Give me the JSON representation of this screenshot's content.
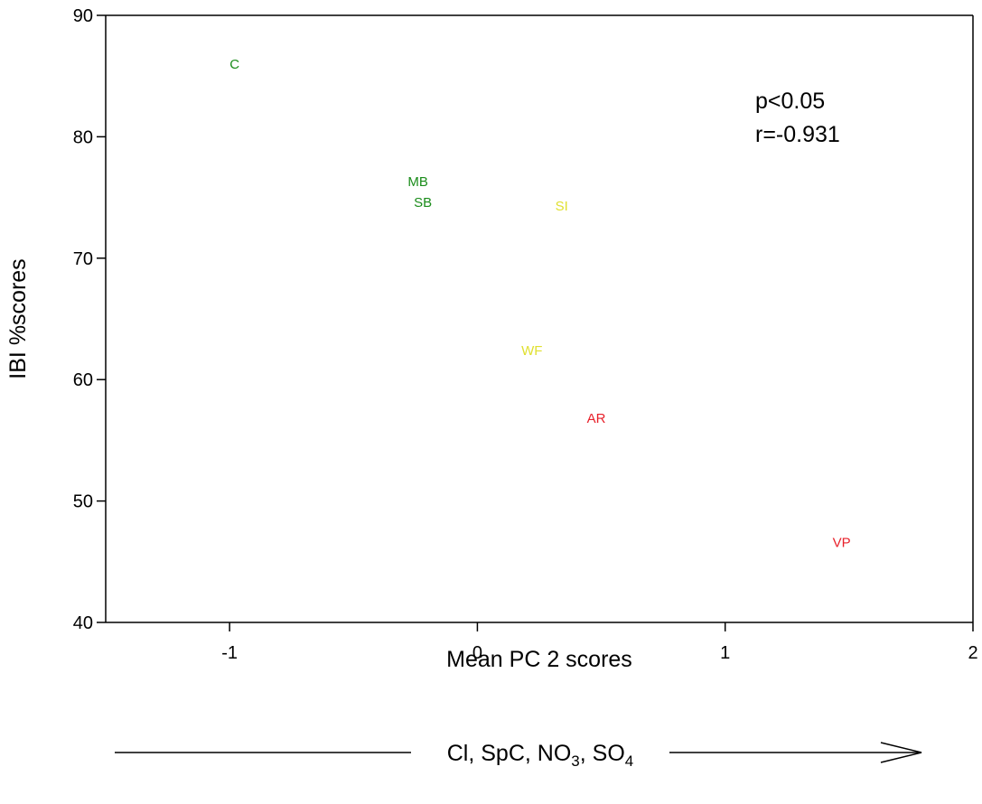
{
  "chart_data": {
    "type": "scatter",
    "title": "",
    "xlabel": "Mean PC 2 scores",
    "ylabel": "IBI %scores",
    "xlim": [
      -1.5,
      2
    ],
    "ylim": [
      40,
      90
    ],
    "x_ticks": [
      -1,
      0,
      1,
      2
    ],
    "y_ticks": [
      40,
      50,
      60,
      70,
      80,
      90
    ],
    "grid": false,
    "points": [
      {
        "label": "C",
        "x": -0.98,
        "y": 86.0,
        "color": "#1a8c1a"
      },
      {
        "label": "MB",
        "x": -0.24,
        "y": 76.3,
        "color": "#1a8c1a"
      },
      {
        "label": "SB",
        "x": -0.22,
        "y": 74.6,
        "color": "#1a8c1a"
      },
      {
        "label": "SI",
        "x": 0.34,
        "y": 74.3,
        "color": "#e0e030"
      },
      {
        "label": "WF",
        "x": 0.22,
        "y": 62.4,
        "color": "#e0e030"
      },
      {
        "label": "AR",
        "x": 0.48,
        "y": 56.8,
        "color": "#e8202a"
      },
      {
        "label": "VP",
        "x": 1.47,
        "y": 46.6,
        "color": "#e8202a"
      }
    ],
    "annotations": {
      "p_value": "p<0.05",
      "r_value": "r=-0.931"
    },
    "gradient_arrow": {
      "prefix": "Cl, SpC, NO",
      "sub1": "3",
      "mid": ", SO",
      "sub2": "4"
    }
  }
}
